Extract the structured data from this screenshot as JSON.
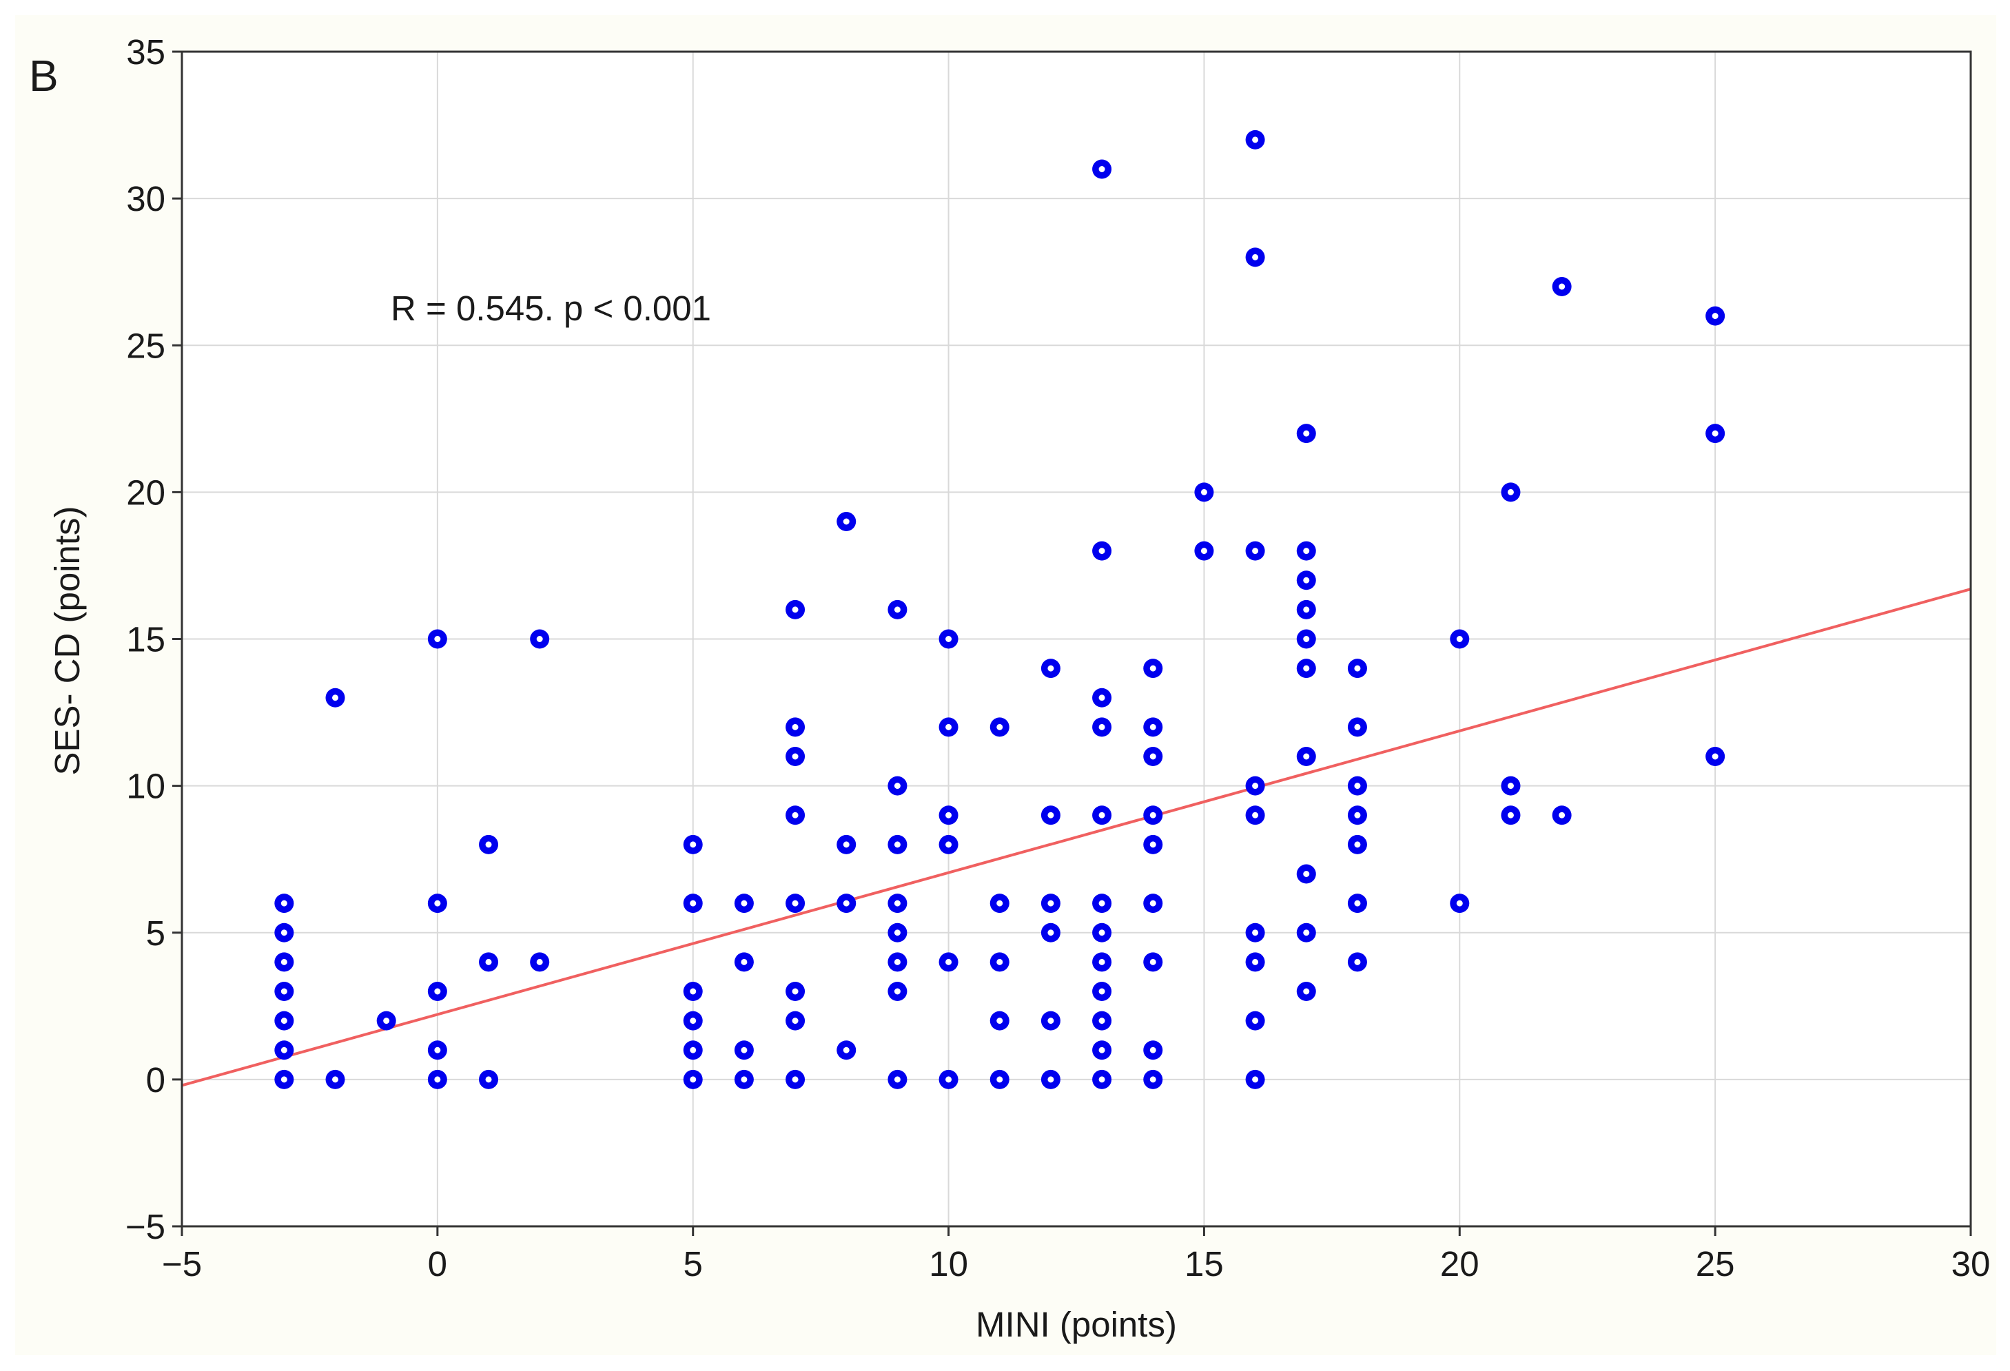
{
  "panel_label": "B",
  "annotation": "R = 0.545. p < 0.001",
  "colors": {
    "point": "#0000ee",
    "point_center": "#ffffff",
    "fit_line": "#f06060",
    "grid": "#d9d9d9",
    "background": "#fdfdf6",
    "axis": "#333333"
  },
  "chart_data": {
    "type": "scatter",
    "xlabel": "MINI (points)",
    "ylabel": "SES- CD (points)",
    "xlim": [
      -5,
      30
    ],
    "ylim": [
      -5,
      35
    ],
    "x_ticks": [
      -5,
      0,
      5,
      10,
      15,
      20,
      25,
      30
    ],
    "y_ticks": [
      -5,
      0,
      5,
      10,
      15,
      20,
      25,
      30,
      35
    ],
    "grid": true,
    "points": [
      {
        "x": -3,
        "y": 6
      },
      {
        "x": -3,
        "y": 5
      },
      {
        "x": -3,
        "y": 4
      },
      {
        "x": -3,
        "y": 3
      },
      {
        "x": -3,
        "y": 2
      },
      {
        "x": -3,
        "y": 1
      },
      {
        "x": -3,
        "y": 0
      },
      {
        "x": -2,
        "y": 13
      },
      {
        "x": -2,
        "y": 0
      },
      {
        "x": -1,
        "y": 2
      },
      {
        "x": 0,
        "y": 15
      },
      {
        "x": 0,
        "y": 6
      },
      {
        "x": 0,
        "y": 3
      },
      {
        "x": 0,
        "y": 1
      },
      {
        "x": 0,
        "y": 0
      },
      {
        "x": 1,
        "y": 8
      },
      {
        "x": 1,
        "y": 4
      },
      {
        "x": 1,
        "y": 0
      },
      {
        "x": 2,
        "y": 15
      },
      {
        "x": 2,
        "y": 4
      },
      {
        "x": 5,
        "y": 8
      },
      {
        "x": 5,
        "y": 6
      },
      {
        "x": 5,
        "y": 3
      },
      {
        "x": 5,
        "y": 2
      },
      {
        "x": 5,
        "y": 1
      },
      {
        "x": 5,
        "y": 0
      },
      {
        "x": 6,
        "y": 6
      },
      {
        "x": 6,
        "y": 4
      },
      {
        "x": 6,
        "y": 1
      },
      {
        "x": 6,
        "y": 0
      },
      {
        "x": 7,
        "y": 16
      },
      {
        "x": 7,
        "y": 12
      },
      {
        "x": 7,
        "y": 11
      },
      {
        "x": 7,
        "y": 9
      },
      {
        "x": 7,
        "y": 6
      },
      {
        "x": 7,
        "y": 3
      },
      {
        "x": 7,
        "y": 2
      },
      {
        "x": 7,
        "y": 0
      },
      {
        "x": 8,
        "y": 19
      },
      {
        "x": 8,
        "y": 8
      },
      {
        "x": 8,
        "y": 6
      },
      {
        "x": 8,
        "y": 1
      },
      {
        "x": 9,
        "y": 16
      },
      {
        "x": 9,
        "y": 10
      },
      {
        "x": 9,
        "y": 8
      },
      {
        "x": 9,
        "y": 6
      },
      {
        "x": 9,
        "y": 5
      },
      {
        "x": 9,
        "y": 4
      },
      {
        "x": 9,
        "y": 3
      },
      {
        "x": 9,
        "y": 0
      },
      {
        "x": 10,
        "y": 15
      },
      {
        "x": 10,
        "y": 12
      },
      {
        "x": 10,
        "y": 9
      },
      {
        "x": 10,
        "y": 8
      },
      {
        "x": 10,
        "y": 4
      },
      {
        "x": 10,
        "y": 0
      },
      {
        "x": 11,
        "y": 12
      },
      {
        "x": 11,
        "y": 6
      },
      {
        "x": 11,
        "y": 4
      },
      {
        "x": 11,
        "y": 2
      },
      {
        "x": 11,
        "y": 0
      },
      {
        "x": 12,
        "y": 14
      },
      {
        "x": 12,
        "y": 9
      },
      {
        "x": 12,
        "y": 6
      },
      {
        "x": 12,
        "y": 5
      },
      {
        "x": 12,
        "y": 2
      },
      {
        "x": 12,
        "y": 0
      },
      {
        "x": 13,
        "y": 31
      },
      {
        "x": 13,
        "y": 18
      },
      {
        "x": 13,
        "y": 13
      },
      {
        "x": 13,
        "y": 12
      },
      {
        "x": 13,
        "y": 9
      },
      {
        "x": 13,
        "y": 6
      },
      {
        "x": 13,
        "y": 5
      },
      {
        "x": 13,
        "y": 4
      },
      {
        "x": 13,
        "y": 3
      },
      {
        "x": 13,
        "y": 2
      },
      {
        "x": 13,
        "y": 1
      },
      {
        "x": 13,
        "y": 0
      },
      {
        "x": 14,
        "y": 14
      },
      {
        "x": 14,
        "y": 12
      },
      {
        "x": 14,
        "y": 11
      },
      {
        "x": 14,
        "y": 9
      },
      {
        "x": 14,
        "y": 8
      },
      {
        "x": 14,
        "y": 6
      },
      {
        "x": 14,
        "y": 4
      },
      {
        "x": 14,
        "y": 1
      },
      {
        "x": 14,
        "y": 0
      },
      {
        "x": 15,
        "y": 20
      },
      {
        "x": 15,
        "y": 18
      },
      {
        "x": 16,
        "y": 32
      },
      {
        "x": 16,
        "y": 28
      },
      {
        "x": 16,
        "y": 18
      },
      {
        "x": 16,
        "y": 10
      },
      {
        "x": 16,
        "y": 9
      },
      {
        "x": 16,
        "y": 5
      },
      {
        "x": 16,
        "y": 4
      },
      {
        "x": 16,
        "y": 2
      },
      {
        "x": 16,
        "y": 0
      },
      {
        "x": 17,
        "y": 22
      },
      {
        "x": 17,
        "y": 18
      },
      {
        "x": 17,
        "y": 17
      },
      {
        "x": 17,
        "y": 16
      },
      {
        "x": 17,
        "y": 15
      },
      {
        "x": 17,
        "y": 14
      },
      {
        "x": 17,
        "y": 11
      },
      {
        "x": 17,
        "y": 7
      },
      {
        "x": 17,
        "y": 5
      },
      {
        "x": 17,
        "y": 3
      },
      {
        "x": 18,
        "y": 14
      },
      {
        "x": 18,
        "y": 12
      },
      {
        "x": 18,
        "y": 10
      },
      {
        "x": 18,
        "y": 9
      },
      {
        "x": 18,
        "y": 8
      },
      {
        "x": 18,
        "y": 6
      },
      {
        "x": 18,
        "y": 4
      },
      {
        "x": 20,
        "y": 15
      },
      {
        "x": 20,
        "y": 6
      },
      {
        "x": 21,
        "y": 20
      },
      {
        "x": 21,
        "y": 10
      },
      {
        "x": 21,
        "y": 9
      },
      {
        "x": 22,
        "y": 27
      },
      {
        "x": 22,
        "y": 9
      },
      {
        "x": 25,
        "y": 26
      },
      {
        "x": 25,
        "y": 22
      },
      {
        "x": 25,
        "y": 11
      }
    ],
    "fit_line": {
      "x": [
        -5,
        30
      ],
      "y": [
        -0.2,
        16.7
      ]
    }
  }
}
